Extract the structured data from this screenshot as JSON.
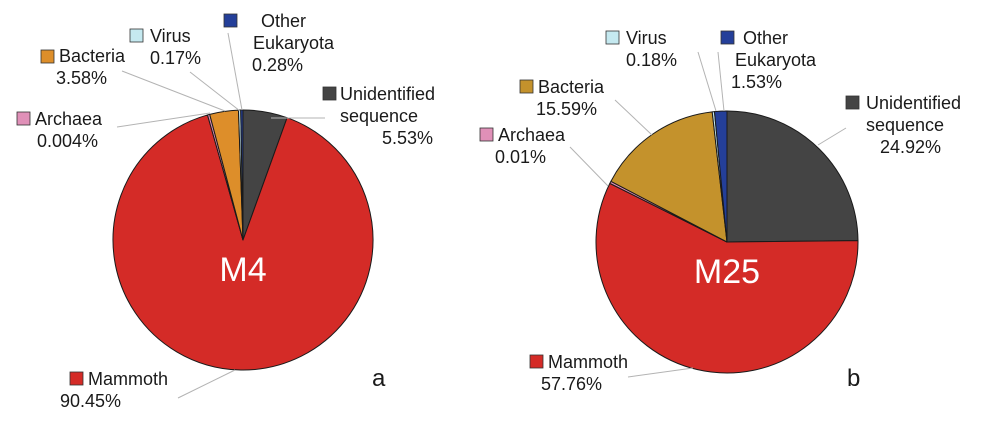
{
  "colors": {
    "mammoth": "#d42b27",
    "unidentified": "#444444",
    "bacteria_a": "#dd8e2a",
    "bacteria_b": "#c4922c",
    "virus": "#c5e9f0",
    "other_eukaryota": "#243f99",
    "archaea": "#e090b8",
    "leader": "#b3b3b3"
  },
  "chart_data": [
    {
      "type": "pie",
      "panel_label": "a",
      "center_label": "M4",
      "start_angle_deg": 0,
      "direction": "clockwise",
      "slices": [
        {
          "name": "Unidentified sequence",
          "name_lines": [
            "Unidentified",
            "sequence"
          ],
          "value": 5.53,
          "value_label": "5.53%",
          "color_key": "unidentified"
        },
        {
          "name": "Mammoth",
          "name_lines": [
            "Mammoth"
          ],
          "value": 90.45,
          "value_label": "90.45%",
          "color_key": "mammoth"
        },
        {
          "name": "Archaea",
          "name_lines": [
            "Archaea"
          ],
          "value": 0.004,
          "value_label": "0.004%",
          "color_key": "archaea"
        },
        {
          "name": "Bacteria",
          "name_lines": [
            "Bacteria"
          ],
          "value": 3.58,
          "value_label": "3.58%",
          "color_key": "bacteria_a"
        },
        {
          "name": "Virus",
          "name_lines": [
            "Virus"
          ],
          "value": 0.17,
          "value_label": "0.17%",
          "color_key": "virus"
        },
        {
          "name": "Other Eukaryota",
          "name_lines": [
            "Other",
            "Eukaryota"
          ],
          "value": 0.28,
          "value_label": "0.28%",
          "color_key": "other_eukaryota"
        }
      ]
    },
    {
      "type": "pie",
      "panel_label": "b",
      "center_label": "M25",
      "start_angle_deg": 0,
      "direction": "clockwise",
      "slices": [
        {
          "name": "Unidentified sequence",
          "name_lines": [
            "Unidentified",
            "sequence"
          ],
          "value": 24.92,
          "value_label": "24.92%",
          "color_key": "unidentified"
        },
        {
          "name": "Mammoth",
          "name_lines": [
            "Mammoth"
          ],
          "value": 57.76,
          "value_label": "57.76%",
          "color_key": "mammoth"
        },
        {
          "name": "Archaea",
          "name_lines": [
            "Archaea"
          ],
          "value": 0.01,
          "value_label": "0.01%",
          "color_key": "archaea"
        },
        {
          "name": "Bacteria",
          "name_lines": [
            "Bacteria"
          ],
          "value": 15.59,
          "value_label": "15.59%",
          "color_key": "bacteria_b"
        },
        {
          "name": "Virus",
          "name_lines": [
            "Virus"
          ],
          "value": 0.18,
          "value_label": "0.18%",
          "color_key": "virus"
        },
        {
          "name": "Other Eukaryota",
          "name_lines": [
            "Other",
            "Eukaryota"
          ],
          "value": 1.53,
          "value_label": "1.53%",
          "color_key": "other_eukaryota"
        }
      ]
    }
  ]
}
